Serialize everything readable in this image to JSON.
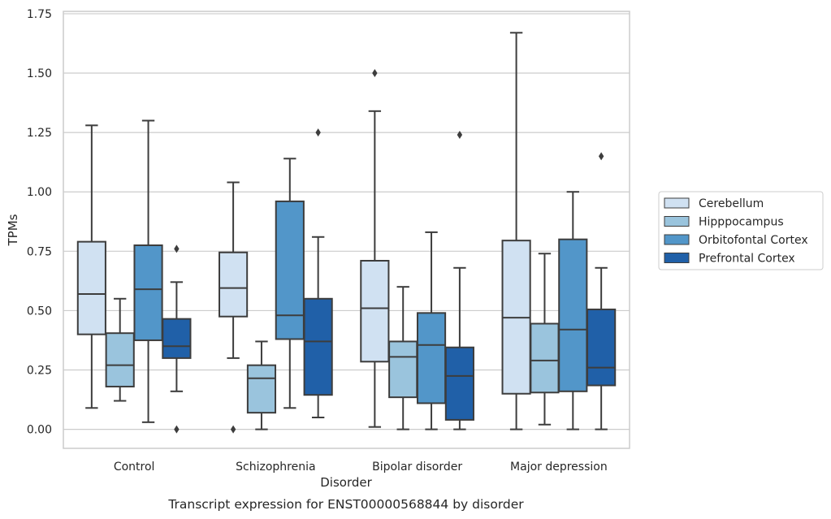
{
  "chart_data": {
    "type": "box",
    "xlabel": "Disorder",
    "ylabel": "TPMs",
    "caption": "Transcript expression for ENST00000568844 by disorder",
    "ylim": [
      -0.08,
      1.76
    ],
    "yticks": [
      "0.00",
      "0.25",
      "0.50",
      "0.75",
      "1.00",
      "1.25",
      "1.50",
      "1.75"
    ],
    "ytick_values": [
      0,
      0.25,
      0.5,
      0.75,
      1.0,
      1.25,
      1.5,
      1.75
    ],
    "grid": true,
    "legend_position": "right",
    "categories": [
      "Control",
      "Schizophrenia",
      "Bipolar disorder",
      "Major depression"
    ],
    "series": [
      {
        "name": "Cerebellum",
        "color": "#d0e1f2",
        "boxes": [
          {
            "whislo": 0.09,
            "q1": 0.4,
            "med": 0.57,
            "q3": 0.79,
            "whishi": 1.28,
            "fliers": []
          },
          {
            "whislo": 0.3,
            "q1": 0.475,
            "med": 0.595,
            "q3": 0.745,
            "whishi": 1.04,
            "fliers": [
              0.0
            ]
          },
          {
            "whislo": 0.01,
            "q1": 0.285,
            "med": 0.51,
            "q3": 0.71,
            "whishi": 1.34,
            "fliers": [
              1.5
            ]
          },
          {
            "whislo": 0.0,
            "q1": 0.15,
            "med": 0.47,
            "q3": 0.795,
            "whishi": 1.67,
            "fliers": []
          }
        ]
      },
      {
        "name": "Hipppocampus",
        "color": "#9ac4dd",
        "boxes": [
          {
            "whislo": 0.12,
            "q1": 0.18,
            "med": 0.27,
            "q3": 0.405,
            "whishi": 0.55,
            "fliers": []
          },
          {
            "whislo": 0.0,
            "q1": 0.07,
            "med": 0.215,
            "q3": 0.27,
            "whishi": 0.37,
            "fliers": []
          },
          {
            "whislo": 0.0,
            "q1": 0.135,
            "med": 0.305,
            "q3": 0.37,
            "whishi": 0.6,
            "fliers": []
          },
          {
            "whislo": 0.02,
            "q1": 0.155,
            "med": 0.29,
            "q3": 0.445,
            "whishi": 0.74,
            "fliers": []
          }
        ]
      },
      {
        "name": "Orbitofontal Cortex",
        "color": "#5296c9",
        "boxes": [
          {
            "whislo": 0.03,
            "q1": 0.375,
            "med": 0.59,
            "q3": 0.775,
            "whishi": 1.3,
            "fliers": []
          },
          {
            "whislo": 0.09,
            "q1": 0.38,
            "med": 0.48,
            "q3": 0.96,
            "whishi": 1.14,
            "fliers": []
          },
          {
            "whislo": 0.0,
            "q1": 0.11,
            "med": 0.355,
            "q3": 0.49,
            "whishi": 0.83,
            "fliers": []
          },
          {
            "whislo": 0.0,
            "q1": 0.16,
            "med": 0.42,
            "q3": 0.8,
            "whishi": 1.0,
            "fliers": []
          }
        ]
      },
      {
        "name": "Prefrontal Cortex",
        "color": "#2060a8",
        "boxes": [
          {
            "whislo": 0.16,
            "q1": 0.3,
            "med": 0.35,
            "q3": 0.465,
            "whishi": 0.62,
            "fliers": [
              0.76,
              0.0
            ]
          },
          {
            "whislo": 0.05,
            "q1": 0.145,
            "med": 0.37,
            "q3": 0.55,
            "whishi": 0.81,
            "fliers": [
              1.25
            ]
          },
          {
            "whislo": 0.0,
            "q1": 0.04,
            "med": 0.225,
            "q3": 0.345,
            "whishi": 0.68,
            "fliers": [
              1.24
            ]
          },
          {
            "whislo": 0.0,
            "q1": 0.185,
            "med": 0.26,
            "q3": 0.505,
            "whishi": 0.68,
            "fliers": [
              1.15
            ]
          }
        ]
      }
    ]
  }
}
